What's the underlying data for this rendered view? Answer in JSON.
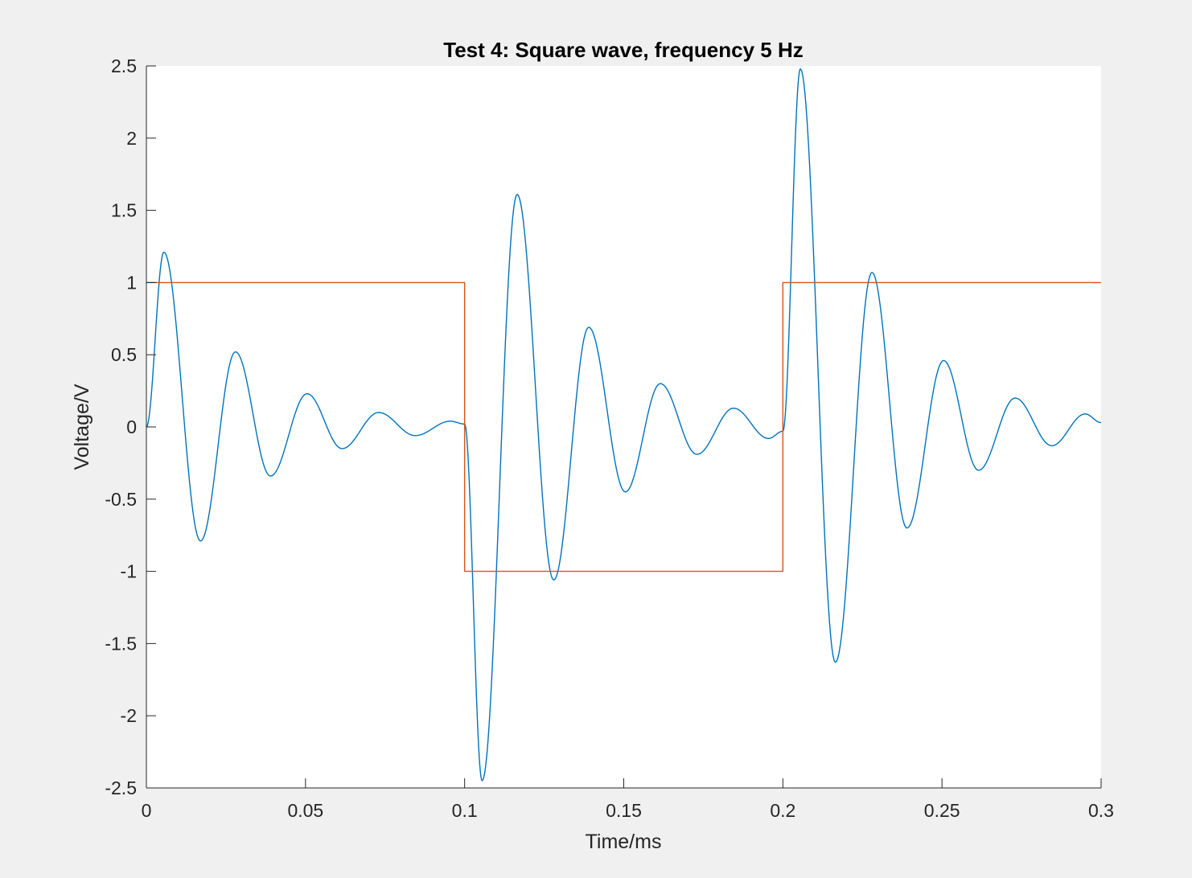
{
  "chart_data": {
    "type": "line",
    "title": "Test 4: Square wave, frequency 5 Hz",
    "xlabel": "Time/ms",
    "ylabel": "Voltage/V",
    "xlim": [
      0,
      0.3
    ],
    "ylim": [
      -2.5,
      2.5
    ],
    "xticks": [
      "0",
      "0.05",
      "0.1",
      "0.15",
      "0.2",
      "0.25",
      "0.3"
    ],
    "xtick_values": [
      0,
      0.05,
      0.1,
      0.15,
      0.2,
      0.25,
      0.3
    ],
    "yticks": [
      "2.5",
      "2",
      "1.5",
      "1",
      "0.5",
      "0",
      "-0.5",
      "-1",
      "-1.5",
      "-2",
      "-2.5"
    ],
    "ytick_values": [
      2.5,
      2,
      1.5,
      1,
      0.5,
      0,
      -0.5,
      -1,
      -1.5,
      -2,
      -2.5
    ],
    "grid": false,
    "series": [
      {
        "color": "#0072BD",
        "x": [
          0,
          0.0055,
          0.017,
          0.028,
          0.039,
          0.0505,
          0.0615,
          0.073,
          0.0845,
          0.0955,
          0.1,
          0.1055,
          0.1165,
          0.128,
          0.139,
          0.1505,
          0.1615,
          0.173,
          0.1845,
          0.1955,
          0.2,
          0.2055,
          0.2165,
          0.228,
          0.239,
          0.2505,
          0.2615,
          0.273,
          0.2845,
          0.295,
          0.3
        ],
        "y": [
          0,
          1.21,
          -0.79,
          0.52,
          -0.34,
          0.23,
          -0.15,
          0.1,
          -0.06,
          0.04,
          0.02,
          -2.45,
          1.61,
          -1.06,
          0.69,
          -0.45,
          0.3,
          -0.19,
          0.13,
          -0.08,
          -0.03,
          2.48,
          -1.63,
          1.07,
          -0.7,
          0.46,
          -0.3,
          0.2,
          -0.13,
          0.09,
          0.03
        ]
      },
      {
        "color": "#D95319",
        "x": [
          0,
          0.1,
          0.1,
          0.2,
          0.2,
          0.3
        ],
        "y": [
          1,
          1,
          -1,
          -1,
          1,
          1
        ]
      }
    ]
  }
}
